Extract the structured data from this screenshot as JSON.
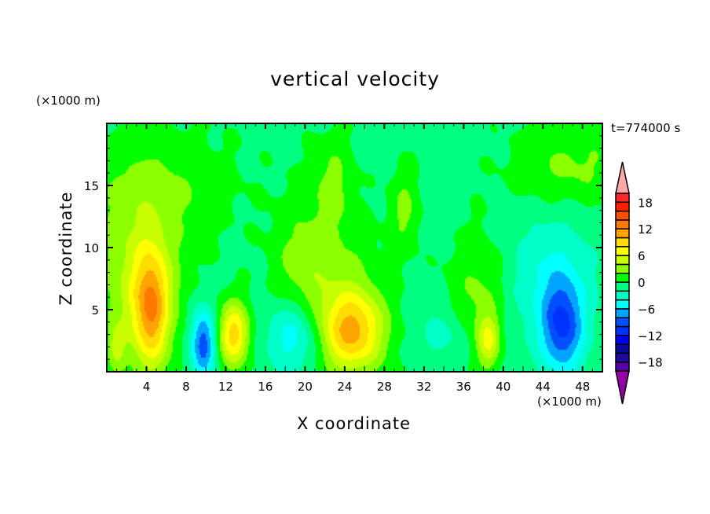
{
  "chart_data": {
    "type": "heatmap",
    "title": "vertical velocity",
    "xlabel": "X coordinate",
    "ylabel": "Z coordinate",
    "x_unit": "(×1000 m)",
    "y_unit": "(×1000 m)",
    "time_label": "t=774000 s",
    "xlim": [
      0,
      50
    ],
    "ylim": [
      0,
      20
    ],
    "xticks": [
      4,
      8,
      12,
      16,
      20,
      24,
      28,
      32,
      36,
      40,
      44,
      48
    ],
    "yticks": [
      5,
      10,
      15
    ],
    "colorbar": {
      "levels": [
        -18,
        -16,
        -14,
        -12,
        -10,
        -8,
        -6,
        -4,
        -2,
        0,
        2,
        4,
        6,
        8,
        10,
        12,
        14,
        16,
        18
      ],
      "labels": [
        18,
        12,
        6,
        0,
        -6,
        -12,
        -18
      ],
      "colors": [
        "#5a00a8",
        "#1e0aa0",
        "#0a0aa0",
        "#0000ff",
        "#0032ff",
        "#0050ff",
        "#00a5ff",
        "#00ffff",
        "#00ffc8",
        "#00ff80",
        "#00ff00",
        "#8cff00",
        "#c8ff00",
        "#ffff00",
        "#ffdc00",
        "#ffa500",
        "#ff7800",
        "#ff5000",
        "#ff2000",
        "#ff2828"
      ],
      "over_color": "#ffa8a8",
      "under_color": "#9600a8"
    },
    "field_base": -0.5,
    "features": [
      {
        "x": 5,
        "z": 15,
        "sx": 5,
        "sz": 3,
        "amp": 2.6
      },
      {
        "x": 3.5,
        "z": 7,
        "sx": 2.8,
        "sz": 4.5,
        "amp": 5.5
      },
      {
        "x": 4.5,
        "z": 5,
        "sx": 1.2,
        "sz": 3.2,
        "amp": 9
      },
      {
        "x": 12.8,
        "z": 3,
        "sx": 1.1,
        "sz": 1.8,
        "amp": 9.5
      },
      {
        "x": 24.8,
        "z": 3.2,
        "sx": 2.2,
        "sz": 2.2,
        "amp": 9.5
      },
      {
        "x": 23.5,
        "z": 6,
        "sx": 3,
        "sz": 4,
        "amp": 3
      },
      {
        "x": 9.7,
        "z": 2.3,
        "sx": 0.9,
        "sz": 2,
        "amp": -9
      },
      {
        "x": 19,
        "z": 3,
        "sx": 2,
        "sz": 2.2,
        "amp": -6
      },
      {
        "x": 46,
        "z": 3.5,
        "sx": 1.4,
        "sz": 2.5,
        "amp": -8
      },
      {
        "x": 45,
        "z": 7,
        "sx": 3,
        "sz": 4,
        "amp": -4
      },
      {
        "x": 19.5,
        "z": 8,
        "sx": 2,
        "sz": 4,
        "amp": 3
      },
      {
        "x": 22.8,
        "z": 15,
        "sx": 1.4,
        "sz": 2.8,
        "amp": 3
      },
      {
        "x": 30,
        "z": 13,
        "sx": 1,
        "sz": 2.3,
        "amp": 3
      },
      {
        "x": 37.5,
        "z": 6,
        "sx": 2,
        "sz": 3.5,
        "amp": 3
      },
      {
        "x": 47,
        "z": 16.5,
        "sx": 4,
        "sz": 2.3,
        "amp": 3
      },
      {
        "x": 38.5,
        "z": 2.5,
        "sx": 0.8,
        "sz": 1.5,
        "amp": 6
      },
      {
        "x": 34,
        "z": 3,
        "sx": 2,
        "sz": 1.5,
        "amp": -2.5
      },
      {
        "x": 1,
        "z": 2,
        "sx": 0.6,
        "sz": 1.2,
        "amp": 4
      }
    ]
  }
}
